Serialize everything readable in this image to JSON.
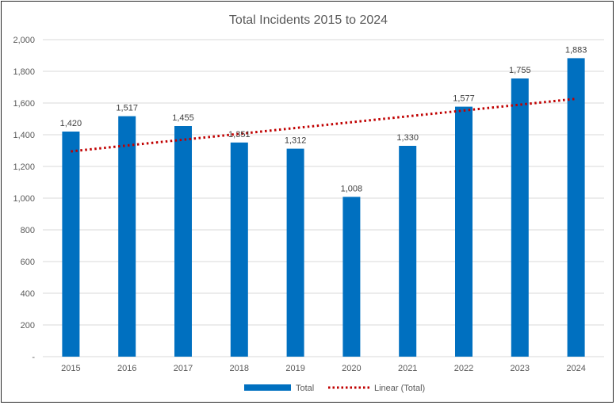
{
  "chart_data": {
    "type": "bar",
    "title": "Total Incidents 2015 to 2024",
    "categories": [
      "2015",
      "2016",
      "2017",
      "2018",
      "2019",
      "2020",
      "2021",
      "2022",
      "2023",
      "2024"
    ],
    "series": [
      {
        "name": "Total",
        "values": [
          1420,
          1517,
          1455,
          1351,
          1312,
          1008,
          1330,
          1577,
          1755,
          1883
        ],
        "color": "#0070C0"
      }
    ],
    "data_labels": [
      "1,420",
      "1,517",
      "1,455",
      "1,351",
      "1,312",
      "1,008",
      "1,330",
      "1,577",
      "1,755",
      "1,883"
    ],
    "trendline": {
      "name": "Linear (Total)",
      "type": "linear",
      "series": "Total",
      "color": "#C00000"
    },
    "ylim": [
      0,
      2000
    ],
    "yticks": [
      0,
      200,
      400,
      600,
      800,
      1000,
      1200,
      1400,
      1600,
      1800,
      2000
    ],
    "ytick_labels": [
      "-",
      "200",
      "400",
      "600",
      "800",
      "1,000",
      "1,200",
      "1,400",
      "1,600",
      "1,800",
      "2,000"
    ],
    "xlabel": "",
    "ylabel": "",
    "grid": true,
    "legend_position": "bottom",
    "gridline_color": "#D9D9D9"
  }
}
